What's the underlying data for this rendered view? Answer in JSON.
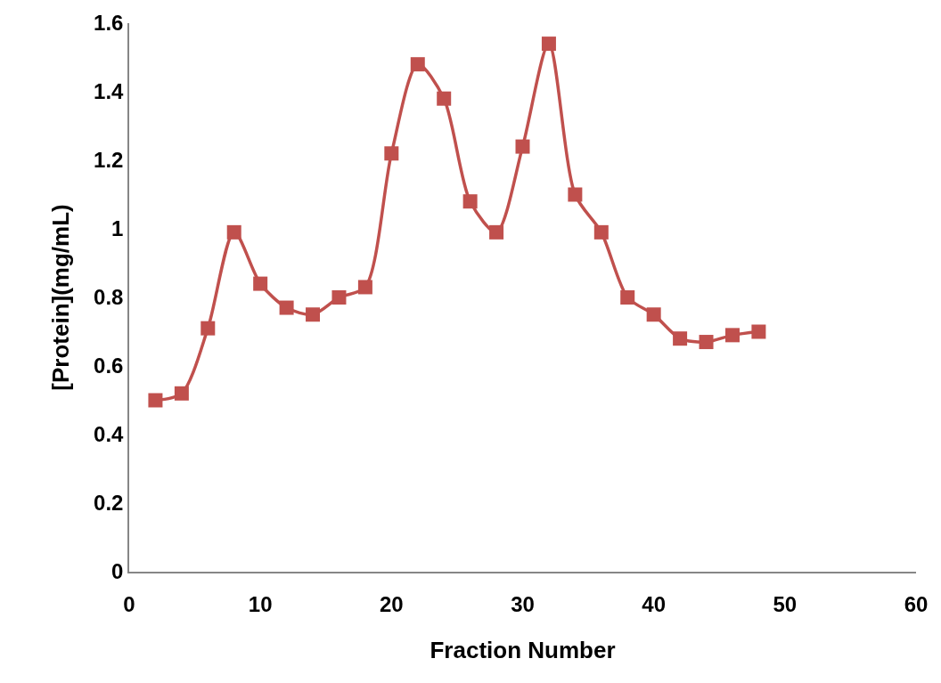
{
  "chart_data": {
    "type": "line",
    "xlabel": "Fraction Number",
    "ylabel": "[Protein](mg/mL)",
    "x": [
      2,
      4,
      6,
      8,
      10,
      12,
      14,
      16,
      18,
      20,
      22,
      24,
      26,
      28,
      30,
      32,
      34,
      36,
      38,
      40,
      42,
      44,
      46,
      48
    ],
    "series": [
      {
        "color": "#c0504d",
        "values": [
          0.5,
          0.52,
          0.71,
          0.99,
          0.84,
          0.77,
          0.75,
          0.8,
          0.83,
          1.22,
          1.48,
          1.38,
          1.08,
          0.99,
          1.24,
          1.54,
          1.1,
          0.99,
          0.8,
          0.75,
          0.68,
          0.67,
          0.69,
          0.7
        ]
      }
    ],
    "xlim": [
      0,
      60
    ],
    "xticks": [
      0,
      10,
      20,
      30,
      40,
      50,
      60
    ],
    "ylim": [
      0,
      1.6
    ],
    "yticks": [
      0,
      0.2,
      0.4,
      0.6,
      0.8,
      1,
      1.2,
      1.4,
      1.6
    ],
    "legend": false,
    "marker": "square",
    "line_style": "solid"
  }
}
